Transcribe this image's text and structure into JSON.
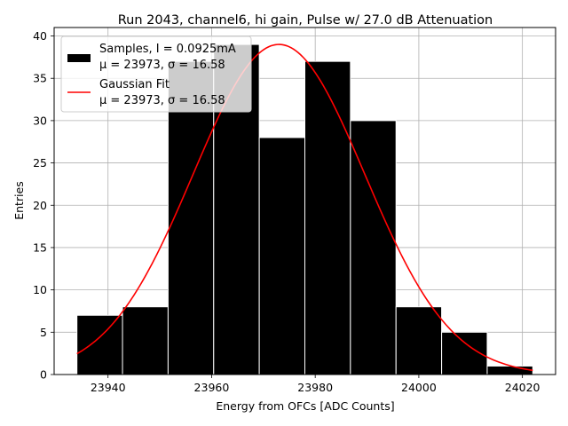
{
  "chart_data": {
    "type": "bar",
    "title": "Run 2043, channel6, hi gain, Pulse w/ 27.0 dB Attenuation",
    "xlabel": "Energy from OFCs [ADC Counts]",
    "ylabel": "Entries",
    "xlim": [
      23929.6,
      24026.4
    ],
    "ylim": [
      0,
      41
    ],
    "grid": true,
    "xticks": [
      23940,
      23960,
      23980,
      24000,
      24020
    ],
    "yticks": [
      0,
      5,
      10,
      15,
      20,
      25,
      30,
      35,
      40
    ],
    "xtick_labels": [
      "23940",
      "23960",
      "23980",
      "24000",
      "24020"
    ],
    "ytick_labels": [
      "0",
      "5",
      "10",
      "15",
      "20",
      "25",
      "30",
      "35",
      "40"
    ],
    "histogram": {
      "name": "Samples, I = 0.0925mA",
      "bin_edges": [
        23934.0,
        23942.8,
        23951.6,
        23960.4,
        23969.2,
        23978.0,
        23986.8,
        23995.6,
        24004.4,
        24013.2,
        24022.0
      ],
      "counts": [
        7,
        8,
        37,
        39,
        28,
        37,
        30,
        8,
        5,
        1
      ],
      "color": "#000000",
      "edgecolor": "#ffffff"
    },
    "fit": {
      "name": "Gaussian Fit",
      "function": "gaussian",
      "amplitude": 39,
      "mu": 23973,
      "sigma": 16.58,
      "x_range": [
        23934,
        24022
      ],
      "color": "#ff0000"
    },
    "legend": {
      "location": "upper-left",
      "entries": [
        {
          "line1": "Samples, I = 0.0925mA",
          "line2": "μ = 23973, σ = 16.58",
          "marker": "patch",
          "color": "#000000"
        },
        {
          "line1": "Gaussian Fit",
          "line2": "μ = 23973, σ = 16.58",
          "marker": "line",
          "color": "#ff0000"
        }
      ]
    }
  }
}
